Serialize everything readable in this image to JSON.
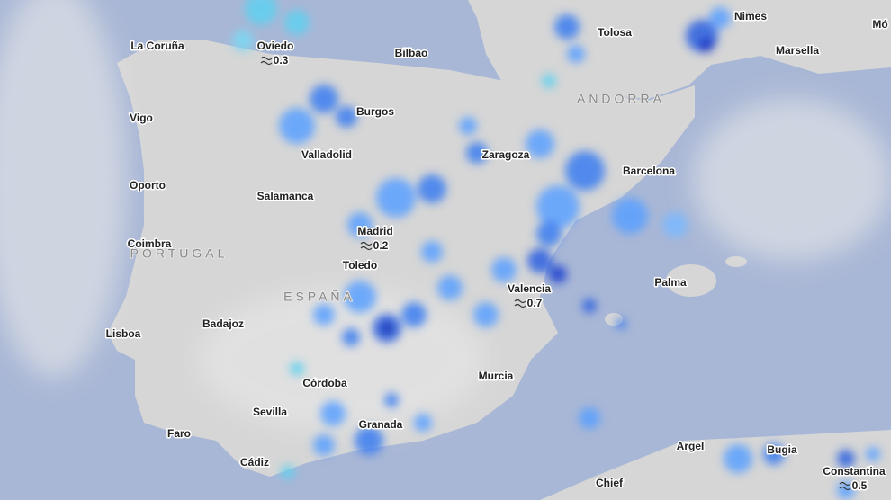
{
  "places": [
    {
      "name": "La Coruña"
    },
    {
      "name": "Oviedo",
      "rain": 0.3
    },
    {
      "name": "Bilbao"
    },
    {
      "name": "Tolosa"
    },
    {
      "name": "Nimes"
    },
    {
      "name": "Mó"
    },
    {
      "name": "Marsella"
    },
    {
      "name": "Vigo"
    },
    {
      "name": "Burgos"
    },
    {
      "name": "Valladolid"
    },
    {
      "name": "Zaragoza"
    },
    {
      "name": "Barcelona"
    },
    {
      "name": "Oporto"
    },
    {
      "name": "Salamanca"
    },
    {
      "name": "Madrid",
      "rain": 0.2
    },
    {
      "name": "Coimbra"
    },
    {
      "name": "Toledo"
    },
    {
      "name": "Valencia",
      "rain": 0.7
    },
    {
      "name": "Palma"
    },
    {
      "name": "Badajoz"
    },
    {
      "name": "Lisboa"
    },
    {
      "name": "Córdoba"
    },
    {
      "name": "Murcia"
    },
    {
      "name": "Sevilla"
    },
    {
      "name": "Granada"
    },
    {
      "name": "Faro"
    },
    {
      "name": "Cádiz"
    },
    {
      "name": "Argel"
    },
    {
      "name": "Bugia"
    },
    {
      "name": "Chief"
    },
    {
      "name": "Constantina",
      "rain": 0.5
    }
  ],
  "regions": [
    "ANDORRA",
    "PORTUGAL",
    "ESPAÑA"
  ]
}
